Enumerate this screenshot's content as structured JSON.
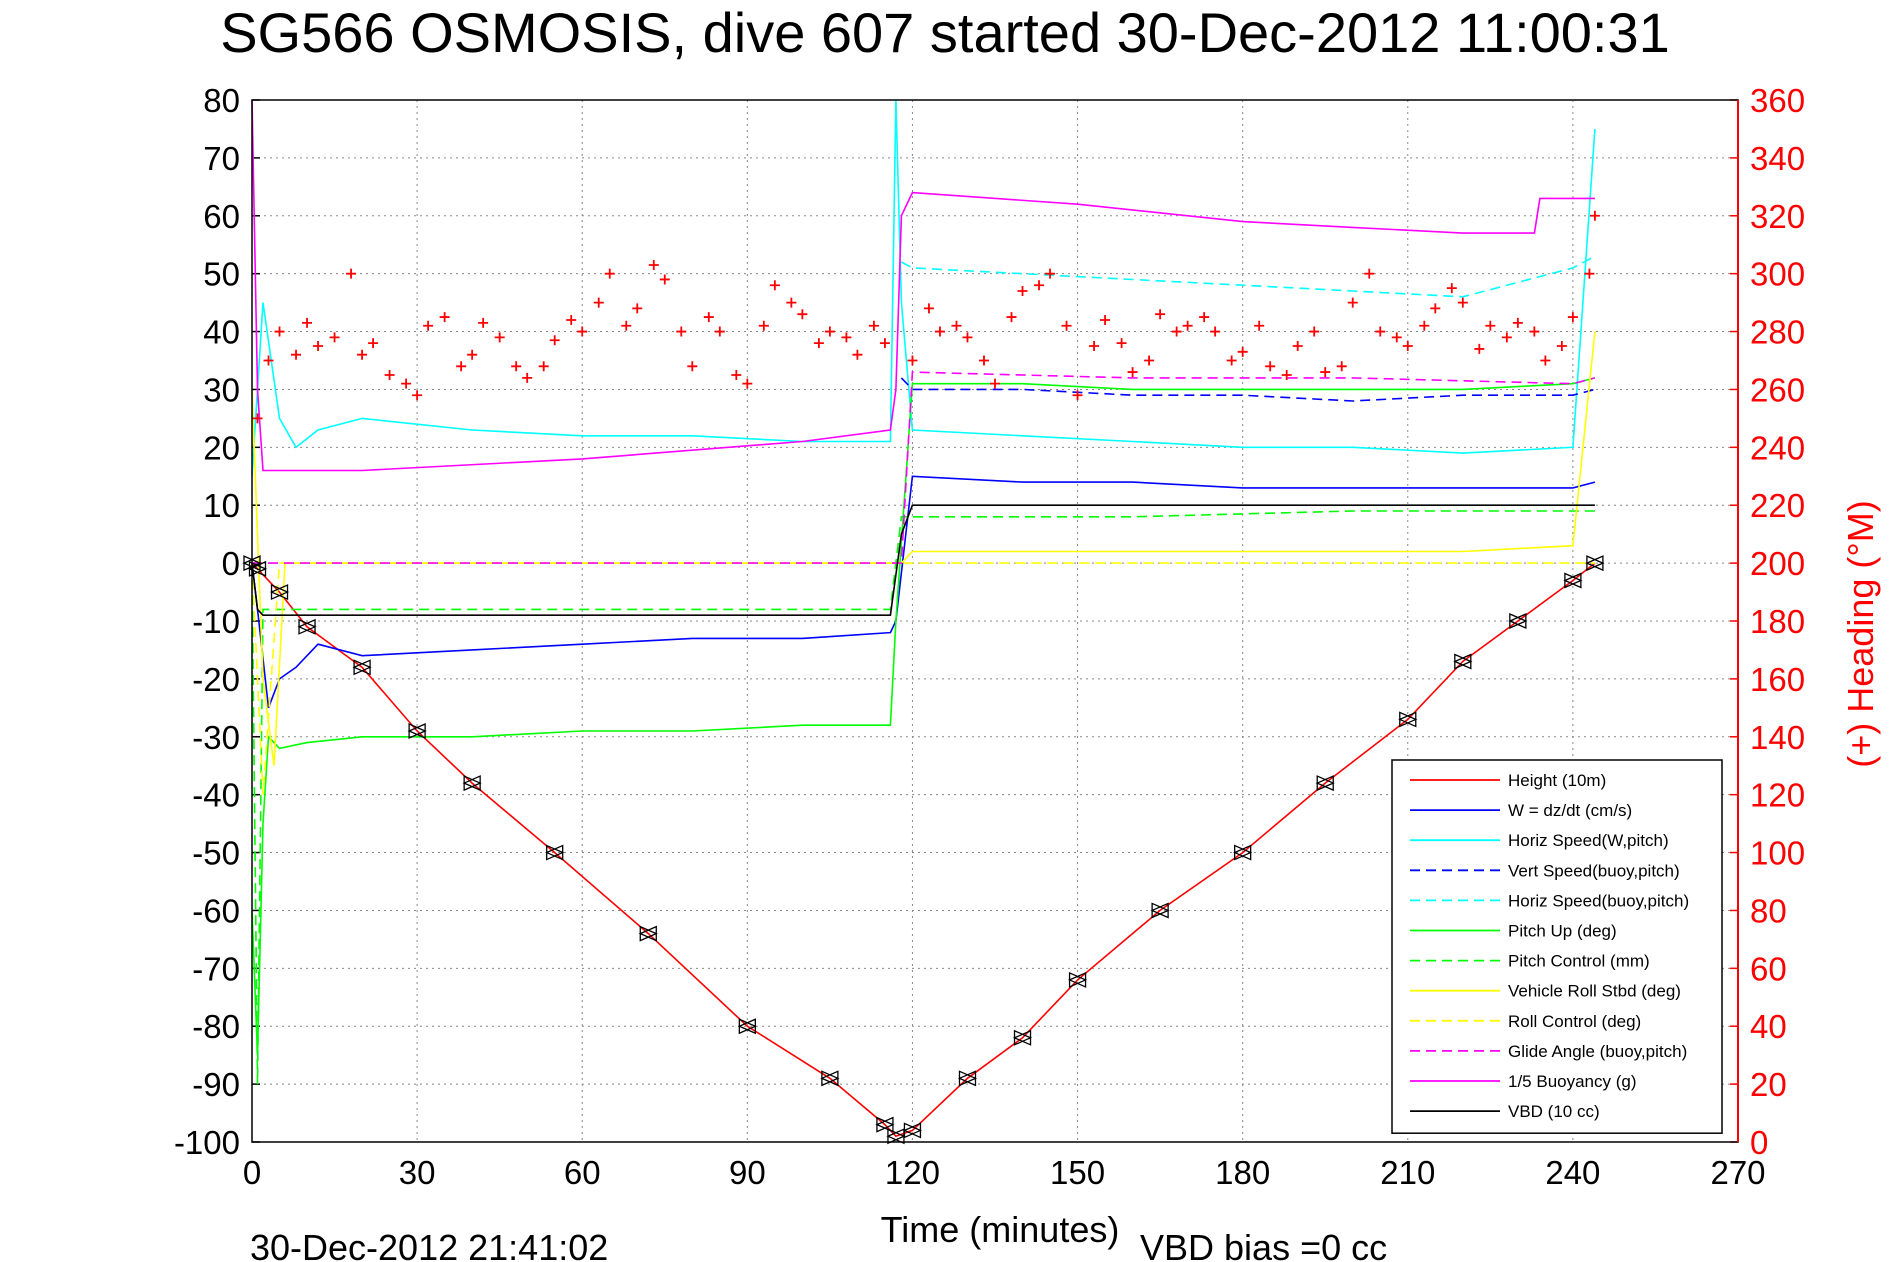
{
  "chart_data": {
    "type": "line",
    "title": "SG566 OSMOSIS, dive 607 started 30-Dec-2012 11:00:31",
    "xlabel": "Time (minutes)",
    "ylabel": "",
    "ylabel_right": "(+) Heading (°M)",
    "xlim": [
      0,
      270
    ],
    "ylim": [
      -100,
      80
    ],
    "ylim_right": [
      0,
      360
    ],
    "xticks": [
      "0",
      "30",
      "60",
      "90",
      "120",
      "150",
      "180",
      "210",
      "240",
      "270"
    ],
    "yticks": [
      "-100",
      "-90",
      "-80",
      "-70",
      "-60",
      "-50",
      "-40",
      "-30",
      "-20",
      "-10",
      "0",
      "10",
      "20",
      "30",
      "40",
      "50",
      "60",
      "70",
      "80"
    ],
    "yticks_right": [
      "0",
      "20",
      "40",
      "60",
      "80",
      "100",
      "120",
      "140",
      "160",
      "180",
      "200",
      "220",
      "240",
      "260",
      "280",
      "300",
      "320",
      "340",
      "360"
    ],
    "grid": true,
    "legend_position": "bottom-right",
    "footer_left": "30-Dec-2012 21:41:02",
    "footer_right": "VBD bias =0 cc",
    "colors": {
      "red": "#ff0000",
      "blue": "#0000ff",
      "cyan": "#00ffff",
      "green": "#00ff00",
      "yellow": "#ffff00",
      "magenta": "#ff00ff",
      "black": "#000000"
    },
    "series": [
      {
        "name": "Height (10m)",
        "color": "#ff0000",
        "style": "solid",
        "x": [
          0,
          1,
          5,
          10,
          20,
          30,
          40,
          55,
          72,
          90,
          105,
          115,
          117,
          120,
          130,
          140,
          150,
          165,
          180,
          195,
          210,
          220,
          230,
          240,
          244
        ],
        "y": [
          0,
          -1,
          -5,
          -11,
          -18,
          -29,
          -38,
          -50,
          -64,
          -80,
          -89,
          -97,
          -99,
          -98,
          -89,
          -82,
          -72,
          -60,
          -50,
          -38,
          -27,
          -17,
          -10,
          -3,
          0
        ]
      },
      {
        "name": "W = dz/dt (cm/s)",
        "color": "#0000ff",
        "style": "solid",
        "x": [
          0,
          1,
          3,
          5,
          8,
          12,
          20,
          40,
          60,
          80,
          100,
          116,
          117,
          120,
          140,
          160,
          180,
          200,
          220,
          240,
          244
        ],
        "y": [
          0,
          -8,
          -25,
          -20,
          -18,
          -14,
          -16,
          -15,
          -14,
          -13,
          -13,
          -12,
          -10,
          15,
          14,
          14,
          13,
          13,
          13,
          13,
          14
        ]
      },
      {
        "name": "Horiz Speed(W,pitch)",
        "color": "#00ffff",
        "style": "solid",
        "x": [
          0,
          2,
          5,
          8,
          12,
          20,
          40,
          60,
          80,
          100,
          116,
          117,
          118,
          120,
          140,
          160,
          180,
          200,
          220,
          240,
          244
        ],
        "y": [
          15,
          45,
          25,
          20,
          23,
          25,
          23,
          22,
          22,
          21,
          21,
          80,
          45,
          23,
          22,
          21,
          20,
          20,
          19,
          20,
          75
        ]
      },
      {
        "name": "Vert Speed(buoy,pitch)",
        "color": "#0000ff",
        "style": "dashed",
        "x": [
          118,
          120,
          140,
          160,
          180,
          200,
          220,
          240,
          244
        ],
        "y": [
          32,
          30,
          30,
          29,
          29,
          28,
          29,
          29,
          30
        ]
      },
      {
        "name": "Horiz Speed(buoy,pitch)",
        "color": "#00ffff",
        "style": "dashed",
        "x": [
          118,
          120,
          140,
          160,
          180,
          200,
          220,
          240,
          244
        ],
        "y": [
          52,
          51,
          50,
          49,
          48,
          47,
          46,
          51,
          53
        ]
      },
      {
        "name": "Pitch Up (deg)",
        "color": "#00ff00",
        "style": "solid",
        "x": [
          0,
          1,
          2,
          3,
          5,
          10,
          20,
          40,
          60,
          80,
          100,
          116,
          117,
          120,
          140,
          160,
          180,
          200,
          220,
          240,
          244
        ],
        "y": [
          -60,
          -85,
          -45,
          -30,
          -32,
          -31,
          -30,
          -30,
          -29,
          -29,
          -28,
          -28,
          -10,
          31,
          31,
          30,
          30,
          30,
          30,
          31,
          32
        ]
      },
      {
        "name": "Pitch Control (mm)",
        "color": "#00ff00",
        "style": "dashed",
        "x": [
          0,
          1,
          2,
          5,
          10,
          20,
          60,
          100,
          116,
          118,
          120,
          160,
          200,
          240,
          244
        ],
        "y": [
          0,
          -90,
          -8,
          -8,
          -8,
          -8,
          -8,
          -8,
          -8,
          8,
          8,
          8,
          9,
          9,
          9
        ]
      },
      {
        "name": "Vehicle Roll Stbd (deg)",
        "color": "#ffff00",
        "style": "solid",
        "x": [
          0,
          2,
          4,
          6,
          10,
          20,
          40,
          60,
          80,
          100,
          116,
          118,
          120,
          140,
          160,
          180,
          200,
          220,
          240,
          244
        ],
        "y": [
          30,
          -20,
          -35,
          0,
          0,
          0,
          0,
          0,
          0,
          0,
          0,
          0,
          2,
          2,
          2,
          2,
          2,
          2,
          3,
          40
        ]
      },
      {
        "name": "Roll Control (deg)",
        "color": "#ffff00",
        "style": "dashed",
        "x": [
          0,
          2,
          5,
          10,
          20,
          40,
          60,
          80,
          100,
          116,
          118,
          120,
          160,
          200,
          240,
          244
        ],
        "y": [
          0,
          -40,
          0,
          0,
          0,
          0,
          0,
          0,
          0,
          0,
          0,
          0,
          0,
          0,
          0,
          0
        ]
      },
      {
        "name": "Glide Angle (buoy,pitch)",
        "color": "#ff00ff",
        "style": "dashed",
        "x": [
          0,
          20,
          60,
          100,
          116,
          118,
          120,
          160,
          200,
          240,
          244
        ],
        "y": [
          0,
          0,
          0,
          0,
          0,
          0,
          33,
          32,
          32,
          31,
          32
        ]
      },
      {
        "name": "1/5 Buoyancy (g)",
        "color": "#ff00ff",
        "style": "solid",
        "x": [
          0,
          1,
          2,
          5,
          20,
          60,
          100,
          116,
          117,
          118,
          120,
          150,
          180,
          200,
          220,
          233,
          234,
          244
        ],
        "y": [
          80,
          30,
          16,
          16,
          16,
          18,
          21,
          23,
          30,
          60,
          64,
          62,
          59,
          58,
          57,
          57,
          63,
          63
        ]
      },
      {
        "name": "VBD (10 cc)",
        "color": "#000000",
        "style": "solid",
        "x": [
          0,
          1,
          2,
          5,
          20,
          60,
          100,
          116,
          118,
          120,
          140,
          180,
          220,
          240,
          244
        ],
        "y": [
          0,
          -8,
          -9,
          -9,
          -9,
          -9,
          -9,
          -9,
          5,
          10,
          10,
          10,
          10,
          10,
          10
        ]
      },
      {
        "name": "(+) Heading",
        "color": "#ff0000",
        "style": "markers",
        "axis": "right",
        "x": [
          1,
          3,
          5,
          8,
          10,
          12,
          15,
          18,
          20,
          22,
          25,
          28,
          30,
          32,
          35,
          38,
          40,
          42,
          45,
          48,
          50,
          53,
          55,
          58,
          60,
          63,
          65,
          68,
          70,
          73,
          75,
          78,
          80,
          83,
          85,
          88,
          90,
          93,
          95,
          98,
          100,
          103,
          105,
          108,
          110,
          113,
          115,
          120,
          123,
          125,
          128,
          130,
          133,
          135,
          138,
          140,
          143,
          145,
          148,
          150,
          153,
          155,
          158,
          160,
          163,
          165,
          168,
          170,
          173,
          175,
          178,
          180,
          183,
          185,
          188,
          190,
          193,
          195,
          198,
          200,
          203,
          205,
          208,
          210,
          213,
          215,
          218,
          220,
          223,
          225,
          228,
          230,
          233,
          235,
          238,
          240,
          243,
          244
        ],
        "y": [
          250,
          270,
          280,
          272,
          283,
          275,
          278,
          300,
          272,
          276,
          265,
          262,
          258,
          282,
          285,
          268,
          272,
          283,
          278,
          268,
          264,
          268,
          277,
          284,
          280,
          290,
          300,
          282,
          288,
          303,
          298,
          280,
          268,
          285,
          280,
          265,
          262,
          282,
          296,
          290,
          286,
          276,
          280,
          278,
          272,
          282,
          276,
          270,
          288,
          280,
          282,
          278,
          270,
          262,
          285,
          294,
          296,
          300,
          282,
          258,
          275,
          284,
          276,
          266,
          270,
          286,
          280,
          282,
          285,
          280,
          270,
          273,
          282,
          268,
          265,
          275,
          280,
          266,
          268,
          290,
          300,
          280,
          278,
          275,
          282,
          288,
          295,
          290,
          274,
          282,
          278,
          283,
          280,
          270,
          275,
          285,
          300,
          320
        ]
      }
    ]
  }
}
